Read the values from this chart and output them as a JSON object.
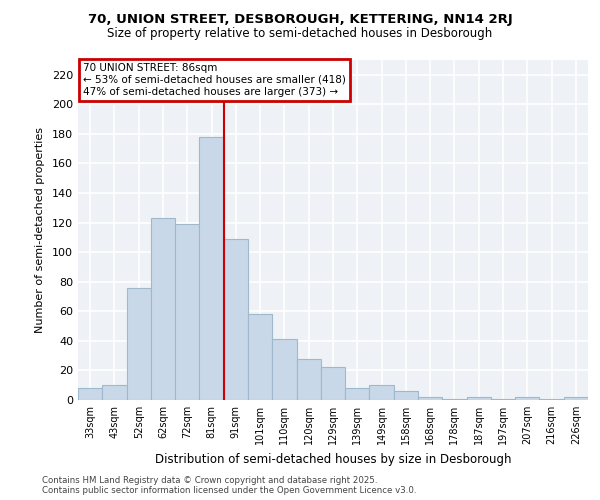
{
  "title1": "70, UNION STREET, DESBOROUGH, KETTERING, NN14 2RJ",
  "title2": "Size of property relative to semi-detached houses in Desborough",
  "xlabel": "Distribution of semi-detached houses by size in Desborough",
  "ylabel": "Number of semi-detached properties",
  "categories": [
    "33sqm",
    "43sqm",
    "52sqm",
    "62sqm",
    "72sqm",
    "81sqm",
    "91sqm",
    "101sqm",
    "110sqm",
    "120sqm",
    "129sqm",
    "139sqm",
    "149sqm",
    "158sqm",
    "168sqm",
    "178sqm",
    "187sqm",
    "197sqm",
    "207sqm",
    "216sqm",
    "226sqm"
  ],
  "values": [
    8,
    10,
    76,
    123,
    119,
    178,
    109,
    58,
    41,
    28,
    22,
    8,
    10,
    6,
    2,
    1,
    2,
    1,
    2,
    1,
    2
  ],
  "bar_color": "#c8d8e8",
  "bar_edge_color": "#a0b8cc",
  "vline_x": 5.5,
  "vline_color": "#cc0000",
  "annotation_title": "70 UNION STREET: 86sqm",
  "annotation_line1": "← 53% of semi-detached houses are smaller (418)",
  "annotation_line2": "47% of semi-detached houses are larger (373) →",
  "annotation_box_color": "#cc0000",
  "ylim": [
    0,
    230
  ],
  "yticks": [
    0,
    20,
    40,
    60,
    80,
    100,
    120,
    140,
    160,
    180,
    200,
    220
  ],
  "footnote": "Contains HM Land Registry data © Crown copyright and database right 2025.\nContains public sector information licensed under the Open Government Licence v3.0.",
  "bg_color": "#eef2f7",
  "grid_color": "#ffffff"
}
